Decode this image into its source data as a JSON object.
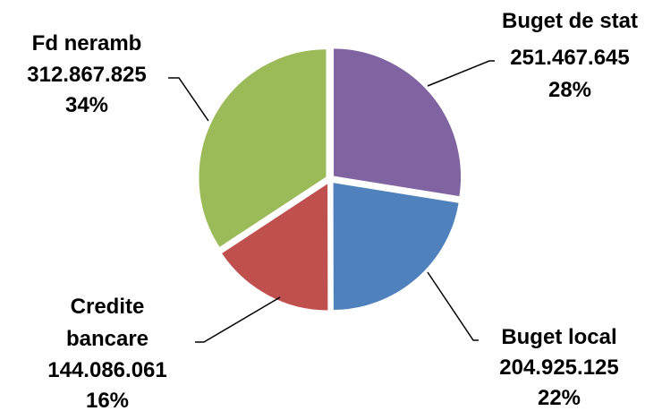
{
  "chart_data": {
    "type": "pie",
    "title": "",
    "slices": [
      {
        "label": "Buget de stat",
        "value_text": "251.467.645",
        "value": 251467645,
        "percent": "28%",
        "color": "#8064A2"
      },
      {
        "label": "Buget local",
        "value_text": "204.925.125",
        "value": 204925125,
        "percent": "22%",
        "color": "#4F81BD"
      },
      {
        "label_lines": [
          "Credite",
          "bancare"
        ],
        "value_text": "144.086.061",
        "value": 144086061,
        "percent": "16%",
        "color": "#C0504D"
      },
      {
        "label": "Fd neramb",
        "value_text": "312.867.825",
        "value": 312867825,
        "percent": "34%",
        "color": "#9BBB59"
      }
    ]
  }
}
